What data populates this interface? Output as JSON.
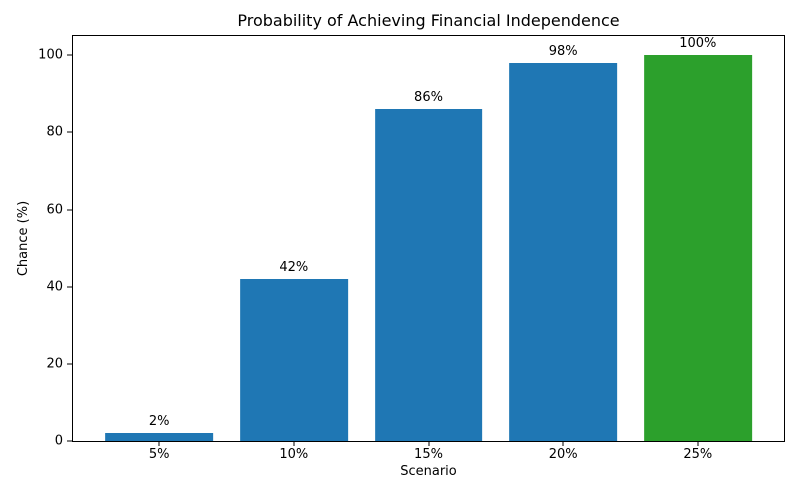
{
  "chart_data": {
    "type": "bar",
    "title": "Probability of Achieving Financial Independence",
    "xlabel": "Scenario",
    "ylabel": "Chance (%)",
    "categories": [
      "5%",
      "10%",
      "15%",
      "20%",
      "25%"
    ],
    "values": [
      2,
      42,
      86,
      98,
      100
    ],
    "bar_labels": [
      "2%",
      "42%",
      "86%",
      "98%",
      "100%"
    ],
    "bar_colors": [
      "#1f77b4",
      "#1f77b4",
      "#1f77b4",
      "#1f77b4",
      "#2ca02c"
    ],
    "yticks": [
      0,
      20,
      40,
      60,
      80,
      100
    ],
    "ylim": [
      0,
      105
    ],
    "xlim": [
      -0.64,
      4.64
    ],
    "bar_width_units": 0.8,
    "grid": false,
    "legend": null,
    "background_color": "#ffffff",
    "spine_color": "#000000",
    "text_color": "#000000"
  }
}
